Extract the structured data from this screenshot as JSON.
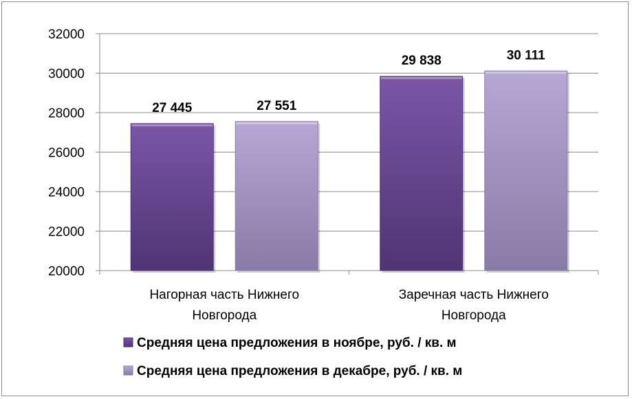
{
  "chart_data": {
    "type": "bar",
    "categories": [
      [
        "Нагорная часть Нижнего",
        "Новгорода"
      ],
      [
        "Заречная часть Нижнего",
        "Новгорода"
      ]
    ],
    "series": [
      {
        "name": "Средняя цена предложения в ноябре, руб. / кв. м",
        "values": [
          27445,
          29838
        ],
        "labels": [
          "27 445",
          "29 838"
        ],
        "color_top": "#7b56a8",
        "color_bottom": "#4f3473"
      },
      {
        "name": "Средняя цена предложения в декабре, руб. / кв. м",
        "values": [
          27551,
          30111
        ],
        "labels": [
          "27 551",
          "30 111"
        ],
        "color_top": "#b7a7d4",
        "color_bottom": "#8a7aa6"
      }
    ],
    "ylim": [
      20000,
      32000
    ],
    "yticks": [
      "20000",
      "22000",
      "24000",
      "26000",
      "28000",
      "30000",
      "32000"
    ],
    "grid": true,
    "legend_position": "bottom"
  }
}
